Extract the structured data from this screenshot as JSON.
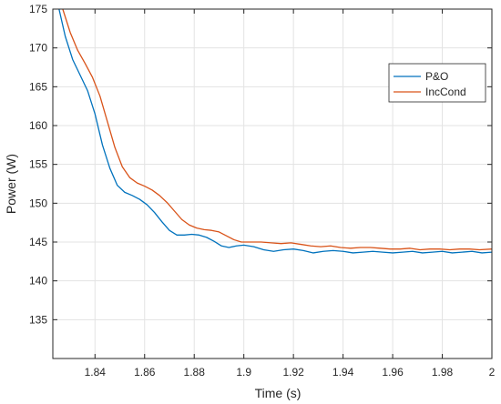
{
  "chart_data": {
    "type": "line",
    "title": "",
    "xlabel": "Time (s)",
    "ylabel": "Power (W)",
    "xlim": [
      1.823,
      2.0
    ],
    "ylim": [
      130,
      175
    ],
    "grid": true,
    "legend_position": "top-right",
    "x_ticks": [
      1.84,
      1.86,
      1.88,
      1.9,
      1.92,
      1.94,
      1.96,
      1.98,
      2.0
    ],
    "x_tick_labels": [
      "1.84",
      "1.86",
      "1.88",
      "1.9",
      "1.92",
      "1.94",
      "1.96",
      "1.98",
      "2"
    ],
    "y_ticks": [
      135,
      140,
      145,
      150,
      155,
      160,
      165,
      170,
      175
    ],
    "y_tick_labels": [
      "135",
      "140",
      "145",
      "150",
      "155",
      "160",
      "165",
      "170",
      "175"
    ],
    "series": [
      {
        "name": "P&O",
        "color": "#0072BD",
        "x": [
          1.8255,
          1.828,
          1.831,
          1.834,
          1.837,
          1.84,
          1.843,
          1.846,
          1.849,
          1.852,
          1.855,
          1.858,
          1.861,
          1.864,
          1.867,
          1.87,
          1.873,
          1.876,
          1.879,
          1.882,
          1.885,
          1.888,
          1.891,
          1.894,
          1.897,
          1.9,
          1.904,
          1.908,
          1.912,
          1.916,
          1.92,
          1.924,
          1.928,
          1.932,
          1.936,
          1.94,
          1.944,
          1.948,
          1.952,
          1.956,
          1.96,
          1.964,
          1.968,
          1.972,
          1.976,
          1.98,
          1.984,
          1.988,
          1.992,
          1.996,
          2.0
        ],
        "values": [
          175,
          171.5,
          168.5,
          166.5,
          164.5,
          161.5,
          157.5,
          154.5,
          152.3,
          151.4,
          151.0,
          150.5,
          149.8,
          148.8,
          147.6,
          146.5,
          145.9,
          145.9,
          146.0,
          145.9,
          145.6,
          145.1,
          144.5,
          144.3,
          144.5,
          144.6,
          144.4,
          144.0,
          143.8,
          144.0,
          144.1,
          143.9,
          143.6,
          143.8,
          143.9,
          143.8,
          143.6,
          143.7,
          143.8,
          143.7,
          143.6,
          143.7,
          143.8,
          143.6,
          143.7,
          143.8,
          143.6,
          143.7,
          143.8,
          143.6,
          143.7
        ]
      },
      {
        "name": "IncCond",
        "color": "#D95319",
        "x": [
          1.827,
          1.83,
          1.833,
          1.836,
          1.839,
          1.842,
          1.845,
          1.848,
          1.851,
          1.854,
          1.857,
          1.86,
          1.863,
          1.866,
          1.869,
          1.872,
          1.875,
          1.878,
          1.881,
          1.884,
          1.887,
          1.89,
          1.893,
          1.896,
          1.899,
          1.903,
          1.907,
          1.911,
          1.915,
          1.919,
          1.923,
          1.927,
          1.931,
          1.935,
          1.939,
          1.943,
          1.947,
          1.951,
          1.955,
          1.959,
          1.963,
          1.967,
          1.971,
          1.975,
          1.979,
          1.983,
          1.987,
          1.991,
          1.995,
          2.0
        ],
        "values": [
          175,
          172.0,
          169.7,
          168.0,
          166.2,
          163.8,
          160.5,
          157.2,
          154.7,
          153.3,
          152.6,
          152.2,
          151.7,
          151.0,
          150.1,
          149.0,
          147.9,
          147.2,
          146.8,
          146.6,
          146.5,
          146.3,
          145.8,
          145.3,
          145.0,
          145.0,
          145.0,
          144.9,
          144.8,
          144.9,
          144.7,
          144.5,
          144.4,
          144.5,
          144.3,
          144.2,
          144.3,
          144.3,
          144.2,
          144.1,
          144.1,
          144.2,
          144.0,
          144.1,
          144.1,
          144.0,
          144.1,
          144.1,
          144.0,
          144.1
        ]
      }
    ]
  }
}
